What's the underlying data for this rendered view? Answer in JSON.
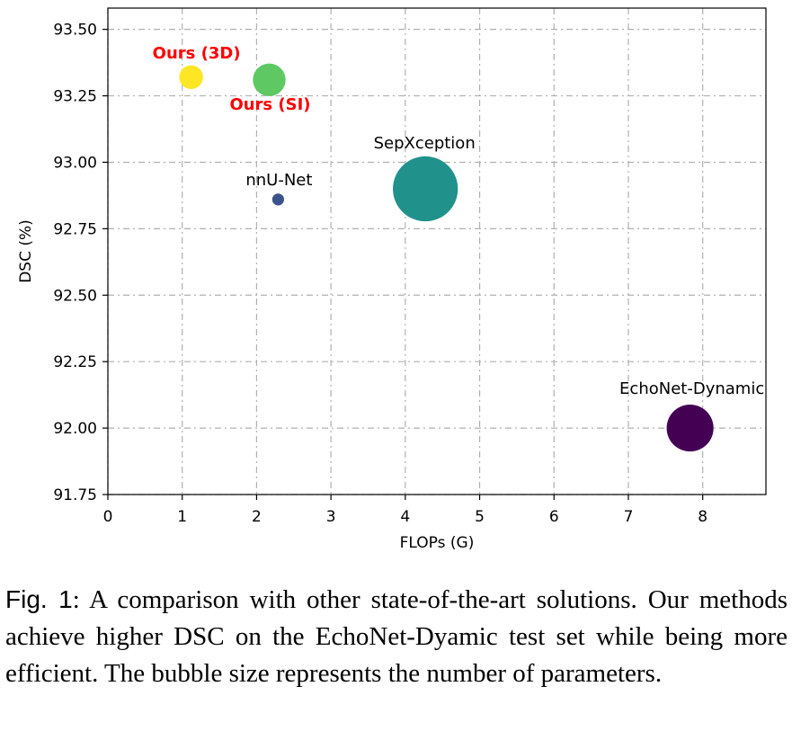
{
  "chart_data": {
    "type": "scatter",
    "xlabel": "FLOPs (G)",
    "ylabel": "DSC (%)",
    "xlim": [
      0,
      8.85
    ],
    "ylim": [
      91.75,
      93.58
    ],
    "x_ticks": [
      "0",
      "1",
      "2",
      "3",
      "4",
      "5",
      "6",
      "7",
      "8"
    ],
    "y_ticks": [
      "91.75",
      "92.00",
      "92.25",
      "92.50",
      "92.75",
      "93.00",
      "93.25",
      "93.50"
    ],
    "grid": true,
    "bubble_size_meaning": "number of parameters",
    "points": [
      {
        "label": "Ours (3D)",
        "x": 1.12,
        "y": 93.32,
        "size": 1.0,
        "color": "#fde725",
        "highlight": true
      },
      {
        "label": "Ours (SI)",
        "x": 2.17,
        "y": 93.31,
        "size": 1.9,
        "color": "#5ec962",
        "highlight": true
      },
      {
        "label": "nnU-Net",
        "x": 2.29,
        "y": 92.86,
        "size": 0.25,
        "color": "#3b528b",
        "highlight": false
      },
      {
        "label": "SepXception",
        "x": 4.27,
        "y": 92.9,
        "size": 7.5,
        "color": "#21918c",
        "highlight": false
      },
      {
        "label": "EchoNet-Dynamic",
        "x": 7.83,
        "y": 92.0,
        "size": 3.9,
        "color": "#440154",
        "highlight": false
      }
    ]
  },
  "caption": {
    "label": "Fig. 1",
    "text": ": A comparison with other state-of-the-art solutions. Our methods achieve higher DSC on the EchoNet-Dyamic test set while being more efficient. The bubble size represents the number of parameters."
  }
}
